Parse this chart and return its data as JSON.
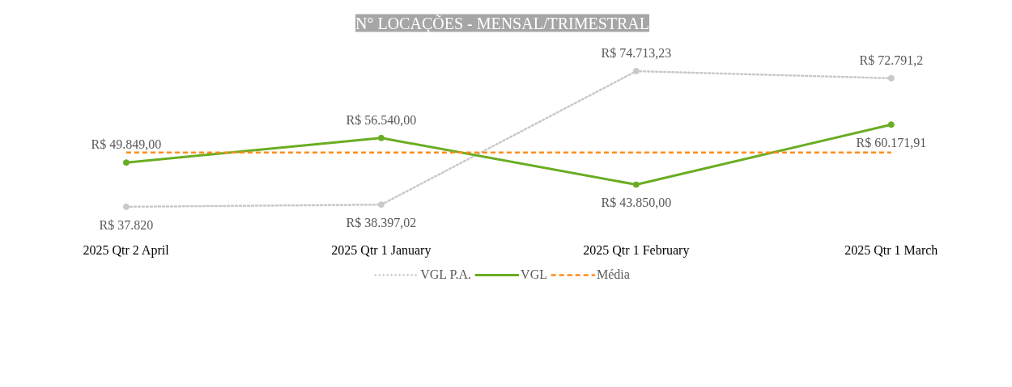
{
  "chart_data": {
    "type": "line",
    "title": "N° LOCAÇÕES - MENSAL/TRIMESTRAL",
    "categories": [
      "2025 Qtr 2 April",
      "2025 Qtr 1 January",
      "2025 Qtr 1 February",
      "2025 Qtr 1 March"
    ],
    "tick_labels": "x",
    "grid": false,
    "legend": "bottom",
    "marker": "circle",
    "series": [
      {
        "name": "VGL P.A.",
        "color": "#c9c9c9",
        "line_style": "dotted",
        "values": [
          37820,
          38397.02,
          74713.23,
          72791.2
        ],
        "value_labels": [
          "R$ 37.820",
          "R$ 38.397,02",
          "R$ 74.713,23",
          "R$ 72.791,2"
        ]
      },
      {
        "name": "VGL",
        "color": "#6aad22",
        "line_style": "solid",
        "values": [
          49849,
          56540,
          43850,
          60171.91
        ],
        "value_labels": [
          "R$ 49.849,00",
          "R$ 56.540,00",
          "R$ 43.850,00",
          "R$ 60.171,91"
        ]
      },
      {
        "name": "Média",
        "color": "#ff8c1a",
        "line_style": "dashed",
        "marker": "none",
        "values": [
          52602.73,
          52602.73,
          52602.73,
          52602.73
        ]
      }
    ]
  }
}
